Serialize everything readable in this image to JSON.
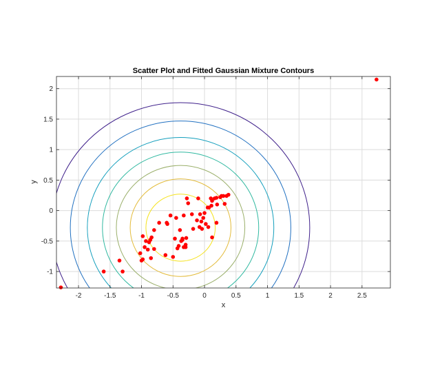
{
  "chart_data": {
    "type": "scatter",
    "title": "Scatter Plot and Fitted Gaussian Mixture Contours",
    "xlabel": "x",
    "ylabel": "y",
    "xlim": [
      -2.35,
      2.95
    ],
    "ylim": [
      -1.27,
      2.2
    ],
    "grid": true,
    "legend": "none",
    "x_ticks": [
      -2,
      -1.5,
      -1,
      -0.5,
      0,
      0.5,
      1,
      1.5,
      2,
      2.5
    ],
    "x_tick_labels": [
      "-2",
      "-1.5",
      "-1",
      "-0.5",
      "0",
      "0.5",
      "1",
      "1.5",
      "2",
      "2.5"
    ],
    "y_ticks": [
      -1,
      -0.5,
      0,
      0.5,
      1,
      1.5,
      2
    ],
    "y_tick_labels": [
      "-1",
      "-0.5",
      "0",
      "0.5",
      "1",
      "1.5",
      "2"
    ],
    "contours": {
      "center": [
        -0.38,
        -0.28
      ],
      "radii": [
        2.05,
        1.75,
        1.48,
        1.24,
        1.02,
        0.8,
        0.55
      ],
      "colors": [
        "#3e1f8a",
        "#1f6fc0",
        "#129ebc",
        "#2fb8a0",
        "#9aaf6a",
        "#e3bb3a",
        "#f5e21a"
      ]
    },
    "series": [
      {
        "color": "#ff0000",
        "points": [
          [
            -2.28,
            -1.26
          ],
          [
            -1.6,
            -1.0
          ],
          [
            -1.35,
            -0.82
          ],
          [
            -1.3,
            -1.0
          ],
          [
            -1.02,
            -0.7
          ],
          [
            -1.0,
            -0.82
          ],
          [
            -0.98,
            -0.8
          ],
          [
            -0.98,
            -0.42
          ],
          [
            -0.95,
            -0.6
          ],
          [
            -0.93,
            -0.5
          ],
          [
            -0.9,
            -0.64
          ],
          [
            -0.88,
            -0.52
          ],
          [
            -0.86,
            -0.48
          ],
          [
            -0.85,
            -0.78
          ],
          [
            -0.84,
            -0.44
          ],
          [
            -0.8,
            -0.63
          ],
          [
            -0.8,
            -0.32
          ],
          [
            -0.72,
            -0.2
          ],
          [
            -0.62,
            -0.73
          ],
          [
            -0.6,
            -0.2
          ],
          [
            -0.59,
            -0.22
          ],
          [
            -0.54,
            -0.08
          ],
          [
            -0.5,
            -0.76
          ],
          [
            -0.47,
            -0.46
          ],
          [
            -0.45,
            -0.12
          ],
          [
            -0.43,
            -0.62
          ],
          [
            -0.41,
            -0.58
          ],
          [
            -0.39,
            -0.32
          ],
          [
            -0.37,
            -0.5
          ],
          [
            -0.35,
            -0.48
          ],
          [
            -0.35,
            -0.46
          ],
          [
            -0.33,
            -0.08
          ],
          [
            -0.33,
            -0.6
          ],
          [
            -0.3,
            -0.56
          ],
          [
            -0.3,
            -0.6
          ],
          [
            -0.29,
            -0.45
          ],
          [
            -0.28,
            0.2
          ],
          [
            -0.26,
            0.12
          ],
          [
            -0.2,
            -0.06
          ],
          [
            -0.18,
            -0.3
          ],
          [
            -0.12,
            -0.16
          ],
          [
            -0.1,
            0.2
          ],
          [
            -0.08,
            -0.27
          ],
          [
            -0.07,
            -0.06
          ],
          [
            -0.05,
            -0.18
          ],
          [
            -0.04,
            -0.3
          ],
          [
            -0.02,
            -0.12
          ],
          [
            0.0,
            -0.04
          ],
          [
            0.02,
            -0.22
          ],
          [
            0.05,
            0.05
          ],
          [
            0.06,
            -0.27
          ],
          [
            0.07,
            0.05
          ],
          [
            0.1,
            0.2
          ],
          [
            0.11,
            0.08
          ],
          [
            0.12,
            0.16
          ],
          [
            0.12,
            -0.44
          ],
          [
            0.16,
            0.2
          ],
          [
            0.19,
            0.21
          ],
          [
            0.19,
            -0.2
          ],
          [
            0.2,
            0.1
          ],
          [
            0.25,
            0.22
          ],
          [
            0.27,
            0.24
          ],
          [
            0.3,
            0.24
          ],
          [
            0.32,
            0.11
          ],
          [
            0.35,
            0.24
          ],
          [
            0.38,
            0.26
          ],
          [
            2.73,
            2.15
          ]
        ]
      }
    ]
  }
}
